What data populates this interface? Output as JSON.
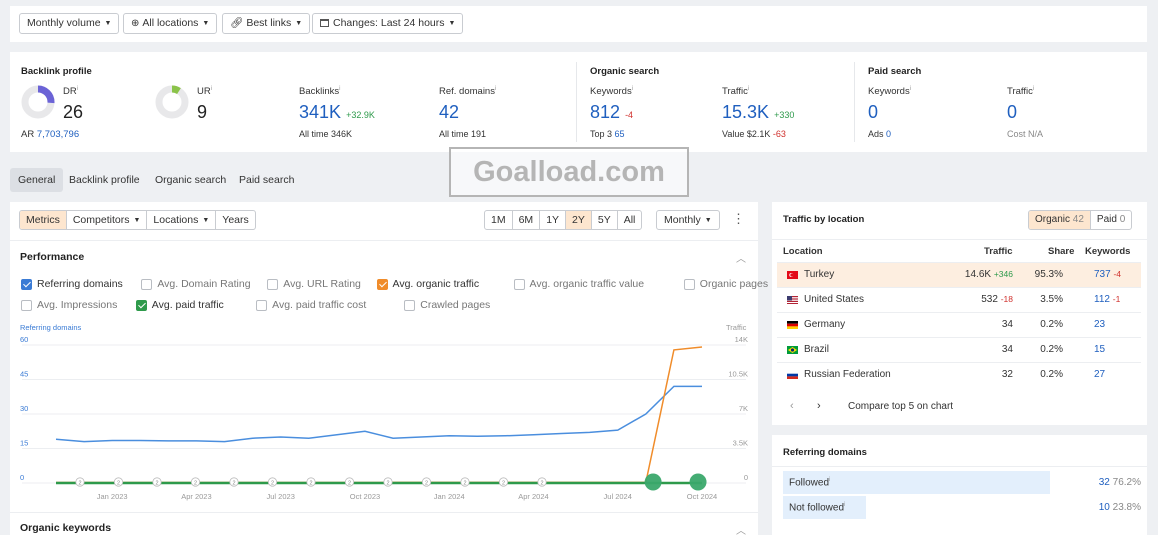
{
  "filters": {
    "volume": "Monthly volume",
    "locations": "All locations",
    "links": "Best links",
    "changes": "Changes: Last 24 hours"
  },
  "backlink_profile": {
    "heading": "Backlink profile",
    "dr_label": "DR",
    "dr_value": "26",
    "dr_fraction": 0.26,
    "ar_label": "AR",
    "ar_value": "7,703,796",
    "ur_label": "UR",
    "ur_value": "9",
    "ur_fraction": 0.09,
    "backlinks_label": "Backlinks",
    "backlinks_value": "341K",
    "backlinks_change": "+32.9K",
    "backlinks_alltime": "All time 346K",
    "ref_label": "Ref. domains",
    "ref_value": "42",
    "ref_alltime": "All time 191"
  },
  "organic_search": {
    "heading": "Organic search",
    "keywords_label": "Keywords",
    "keywords_value": "812",
    "keywords_change": "-4",
    "top3_label": "Top 3",
    "top3_value": "65",
    "traffic_label": "Traffic",
    "traffic_value": "15.3K",
    "traffic_change": "+330",
    "value_label": "Value $2.1K",
    "value_change": "-63"
  },
  "paid_search": {
    "heading": "Paid search",
    "keywords_label": "Keywords",
    "keywords_value": "0",
    "ads_label": "Ads",
    "ads_value": "0",
    "traffic_label": "Traffic",
    "traffic_value": "0",
    "cost_label": "Cost N/A"
  },
  "watermark": "Goalload.com",
  "tabs": [
    "General",
    "Backlink profile",
    "Organic search",
    "Paid search"
  ],
  "chart_toolbar": {
    "metrics": "Metrics",
    "competitors": "Competitors",
    "locations": "Locations",
    "years": "Years",
    "ranges": [
      "1M",
      "6M",
      "1Y",
      "2Y",
      "5Y",
      "All"
    ],
    "active_range": "2Y",
    "interval": "Monthly"
  },
  "performance": {
    "heading": "Performance",
    "checkboxes_row1": [
      {
        "label": "Referring domains",
        "checked": true,
        "color": "#3a7bd5"
      },
      {
        "label": "Avg. Domain Rating",
        "checked": false
      },
      {
        "label": "Avg. URL Rating",
        "checked": false
      },
      {
        "label": "Avg. organic traffic",
        "checked": true,
        "color": "#f08c2a"
      },
      {
        "label": "Avg. organic traffic value",
        "checked": false
      },
      {
        "label": "Organic pages",
        "checked": false
      }
    ],
    "checkboxes_row2": [
      {
        "label": "Avg. Impressions",
        "checked": false
      },
      {
        "label": "Avg. paid traffic",
        "checked": true,
        "color": "#2e9a4b"
      },
      {
        "label": "Avg. paid traffic cost",
        "checked": false
      },
      {
        "label": "Crawled pages",
        "checked": false
      }
    ],
    "left_axis_title": "Referring domains",
    "right_axis_title": "Traffic",
    "next_heading": "Organic keywords"
  },
  "chart_data": {
    "type": "line",
    "x": [
      "Nov 2022",
      "Dec 2022",
      "Jan 2023",
      "Feb 2023",
      "Mar 2023",
      "Apr 2023",
      "May 2023",
      "Jun 2023",
      "Jul 2023",
      "Aug 2023",
      "Sep 2023",
      "Oct 2023",
      "Nov 2023",
      "Dec 2023",
      "Jan 2024",
      "Feb 2024",
      "Mar 2024",
      "Apr 2024",
      "May 2024",
      "Jun 2024",
      "Jul 2024",
      "Aug 2024",
      "Sep 2024",
      "Oct 2024"
    ],
    "x_tick_labels": [
      "Jan 2023",
      "Apr 2023",
      "Jul 2023",
      "Oct 2023",
      "Jan 2024",
      "Apr 2024",
      "Jul 2024",
      "Oct 2024"
    ],
    "y_left_ticks": [
      "0",
      "15",
      "30",
      "45",
      "60"
    ],
    "y_left_range": [
      0,
      60
    ],
    "y_right_ticks": [
      "0",
      "3.5K",
      "7K",
      "10.5K",
      "14K"
    ],
    "y_right_range": [
      0,
      14000
    ],
    "series": [
      {
        "name": "Referring domains",
        "axis": "left",
        "color": "#4a8ede",
        "values": [
          19,
          18,
          18.5,
          18.5,
          18.3,
          18.3,
          18,
          19.5,
          20,
          19.5,
          21,
          22.5,
          19.5,
          20,
          20.5,
          20.3,
          20.5,
          21,
          21.5,
          22,
          23,
          30,
          42,
          42
        ]
      },
      {
        "name": "Avg. organic traffic",
        "axis": "right",
        "color": "#f08c2a",
        "values": [
          50,
          50,
          50,
          50,
          50,
          50,
          50,
          50,
          50,
          50,
          50,
          50,
          60,
          60,
          60,
          60,
          60,
          60,
          60,
          60,
          60,
          60,
          13500,
          13800
        ]
      },
      {
        "name": "Avg. paid traffic",
        "axis": "right",
        "color": "#2e9a4b",
        "values": [
          0,
          0,
          0,
          0,
          0,
          0,
          0,
          0,
          0,
          0,
          0,
          0,
          0,
          0,
          0,
          0,
          0,
          0,
          0,
          0,
          0,
          0,
          0,
          0
        ]
      }
    ],
    "annotation_markers": [
      "2",
      "2",
      "2",
      "2",
      "2",
      "2",
      "2",
      "2",
      "2",
      "2",
      "2",
      "2",
      "2"
    ]
  },
  "traffic_by_location": {
    "heading": "Traffic by location",
    "organic_label": "Organic",
    "organic_count": "42",
    "paid_label": "Paid",
    "paid_count": "0",
    "columns": [
      "Location",
      "Traffic",
      "Share",
      "Keywords"
    ],
    "rows": [
      {
        "flag": "tr",
        "name": "Turkey",
        "traffic": "14.6K",
        "traffic_change": "+346",
        "share": "95.3%",
        "keywords": "737",
        "keywords_change": "-4"
      },
      {
        "flag": "us",
        "name": "United States",
        "traffic": "532",
        "traffic_change": "-18",
        "share": "3.5%",
        "keywords": "112",
        "keywords_change": "-1"
      },
      {
        "flag": "de",
        "name": "Germany",
        "traffic": "34",
        "traffic_change": "",
        "share": "0.2%",
        "keywords": "23",
        "keywords_change": ""
      },
      {
        "flag": "br",
        "name": "Brazil",
        "traffic": "34",
        "traffic_change": "",
        "share": "0.2%",
        "keywords": "15",
        "keywords_change": ""
      },
      {
        "flag": "ru",
        "name": "Russian Federation",
        "traffic": "32",
        "traffic_change": "",
        "share": "0.2%",
        "keywords": "27",
        "keywords_change": ""
      }
    ],
    "compare_label": "Compare top 5 on chart"
  },
  "referring_domains": {
    "heading": "Referring domains",
    "rows": [
      {
        "label": "Followed",
        "value": "32",
        "pct": "76.2%",
        "fraction": 0.762
      },
      {
        "label": "Not followed",
        "value": "10",
        "pct": "23.8%",
        "fraction": 0.238
      }
    ]
  }
}
